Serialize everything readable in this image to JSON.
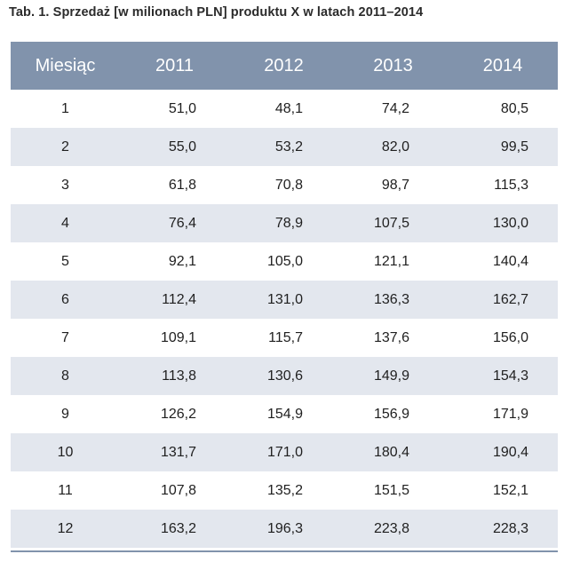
{
  "caption": "Tab. 1. Sprzedaż [w milionach PLN] produktu X w latach 2011–2014",
  "header": [
    "Miesiąc",
    "2011",
    "2012",
    "2013",
    "2014"
  ],
  "rows": [
    [
      "1",
      "51,0",
      "48,1",
      "74,2",
      "80,5"
    ],
    [
      "2",
      "55,0",
      "53,2",
      "82,0",
      "99,5"
    ],
    [
      "3",
      "61,8",
      "70,8",
      "98,7",
      "115,3"
    ],
    [
      "4",
      "76,4",
      "78,9",
      "107,5",
      "130,0"
    ],
    [
      "5",
      "92,1",
      "105,0",
      "121,1",
      "140,4"
    ],
    [
      "6",
      "112,4",
      "131,0",
      "136,3",
      "162,7"
    ],
    [
      "7",
      "109,1",
      "115,7",
      "137,6",
      "156,0"
    ],
    [
      "8",
      "113,8",
      "130,6",
      "149,9",
      "154,3"
    ],
    [
      "9",
      "126,2",
      "154,9",
      "156,9",
      "171,9"
    ],
    [
      "10",
      "131,7",
      "171,0",
      "180,4",
      "190,4"
    ],
    [
      "11",
      "107,8",
      "135,2",
      "151,5",
      "152,1"
    ],
    [
      "12",
      "163,2",
      "196,3",
      "223,8",
      "228,3"
    ]
  ],
  "colors": {
    "header_bg": "#8193ac",
    "stripe_bg": "#e3e7ee",
    "header_text": "#ffffff"
  }
}
